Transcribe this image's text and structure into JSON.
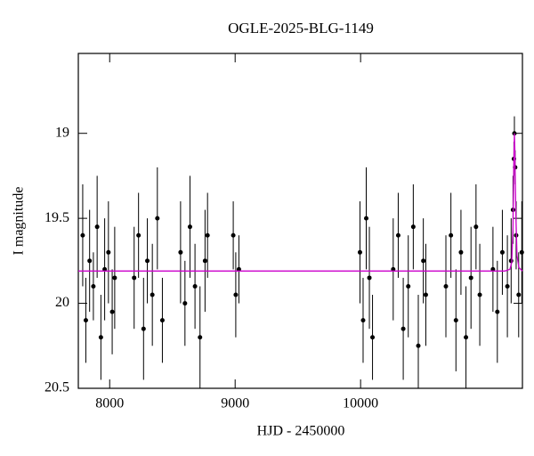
{
  "chart_data": {
    "type": "scatter",
    "title": "OGLE-2025-BLG-1149",
    "x_label": "HJD - 2450000",
    "y_label": "I magnitude",
    "xlim": [
      7750,
      11290
    ],
    "ylim": [
      20.5,
      18.53
    ],
    "xticks": [
      8000,
      9000,
      10000
    ],
    "yticks": [
      19,
      19.5,
      20,
      20.5
    ],
    "points": {
      "color": "#000000",
      "x": [
        7785,
        7810,
        7840,
        7870,
        7900,
        7930,
        7960,
        7990,
        8020,
        8040,
        8195,
        8230,
        8270,
        8300,
        8340,
        8380,
        8420,
        8565,
        8600,
        8640,
        8680,
        8720,
        8760,
        8780,
        8985,
        9005,
        9030,
        9995,
        10020,
        10045,
        10070,
        10095,
        10260,
        10300,
        10340,
        10380,
        10420,
        10460,
        10500,
        10520,
        10680,
        10720,
        10760,
        10800,
        10840,
        10880,
        10920,
        10950,
        11055,
        11090,
        11130,
        11170,
        11200,
        11215,
        11222,
        11226,
        11232,
        11240,
        11260,
        11285
      ],
      "y": [
        19.6,
        20.1,
        19.75,
        19.9,
        19.55,
        20.2,
        19.8,
        19.7,
        20.05,
        19.85,
        19.85,
        19.6,
        20.15,
        19.75,
        19.95,
        19.5,
        20.1,
        19.7,
        20.0,
        19.55,
        19.9,
        20.2,
        19.75,
        19.6,
        19.6,
        19.95,
        19.8,
        19.7,
        20.1,
        19.5,
        19.85,
        20.2,
        19.8,
        19.6,
        20.15,
        19.9,
        19.55,
        20.25,
        19.75,
        19.95,
        19.9,
        19.6,
        20.1,
        19.7,
        20.2,
        19.85,
        19.55,
        19.95,
        19.8,
        20.05,
        19.7,
        19.9,
        19.75,
        19.45,
        19.15,
        19.0,
        19.2,
        19.6,
        19.95,
        19.7
      ],
      "errors": [
        0.3,
        0.25,
        0.3,
        0.2,
        0.3,
        0.25,
        0.3,
        0.3,
        0.25,
        0.3,
        0.3,
        0.25,
        0.3,
        0.25,
        0.3,
        0.3,
        0.25,
        0.3,
        0.25,
        0.3,
        0.25,
        0.3,
        0.3,
        0.25,
        0.2,
        0.25,
        0.2,
        0.3,
        0.25,
        0.3,
        0.3,
        0.25,
        0.3,
        0.25,
        0.3,
        0.3,
        0.25,
        0.3,
        0.25,
        0.3,
        0.3,
        0.25,
        0.3,
        0.25,
        0.3,
        0.3,
        0.25,
        0.3,
        0.25,
        0.3,
        0.25,
        0.3,
        0.25,
        0.2,
        0.1,
        0.1,
        0.1,
        0.2,
        0.25,
        0.3
      ]
    },
    "model": {
      "color": "#cc00cc",
      "x": [
        7750,
        11150,
        11190,
        11205,
        11215,
        11222,
        11226,
        11230,
        11237,
        11247,
        11262,
        11290
      ],
      "y": [
        19.81,
        19.81,
        19.8,
        19.76,
        19.55,
        19.15,
        19.0,
        19.1,
        19.45,
        19.72,
        19.79,
        19.81
      ]
    }
  }
}
